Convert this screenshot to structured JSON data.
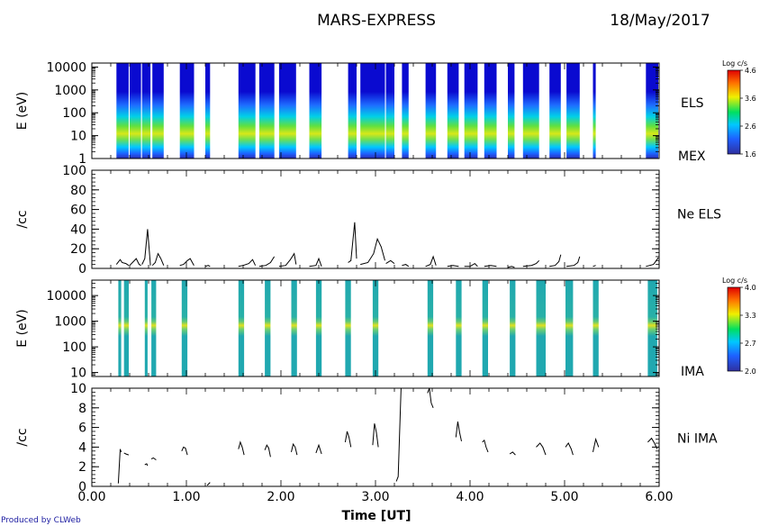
{
  "title": "MARS-EXPRESS",
  "date": "18/May/2017",
  "credit": "Produced by CLWeb",
  "chart_data": [
    {
      "type": "heatmap",
      "id": "els-spectrogram",
      "ylabel": "E (eV)",
      "right_label": "ELS",
      "extra_label": "MEX",
      "yscale": "log",
      "ylim": [
        1,
        15000
      ],
      "yticks": [
        "10000",
        "1000",
        "100",
        "10",
        "1"
      ],
      "colorbar": {
        "title": "Log c/s",
        "range": [
          1.6,
          4.6
        ],
        "ticks": [
          "4.6",
          "3.6",
          "2.6",
          "1.6"
        ]
      },
      "xlim": [
        0,
        6
      ],
      "data_intervals_ut": [
        [
          0.26,
          0.39
        ],
        [
          0.4,
          0.52
        ],
        [
          0.53,
          0.62
        ],
        [
          0.64,
          0.76
        ],
        [
          0.93,
          1.08
        ],
        [
          1.2,
          1.25
        ],
        [
          1.55,
          1.73
        ],
        [
          1.77,
          1.93
        ],
        [
          1.98,
          2.16
        ],
        [
          2.3,
          2.43
        ],
        [
          2.71,
          2.8
        ],
        [
          2.84,
          3.1
        ],
        [
          3.11,
          3.2
        ],
        [
          3.28,
          3.35
        ],
        [
          3.53,
          3.64
        ],
        [
          3.76,
          3.88
        ],
        [
          3.94,
          4.08
        ],
        [
          4.15,
          4.28
        ],
        [
          4.4,
          4.47
        ],
        [
          4.56,
          4.73
        ],
        [
          4.84,
          4.96
        ],
        [
          5.02,
          5.16
        ],
        [
          5.3,
          5.33
        ],
        [
          5.86,
          5.99
        ]
      ]
    },
    {
      "type": "line",
      "id": "ne-els",
      "ylabel": "/cc",
      "right_label": "Ne ELS",
      "ylim": [
        0,
        100
      ],
      "yticks": [
        0,
        20,
        40,
        60,
        80,
        100
      ],
      "xlim": [
        0,
        6
      ],
      "series": [
        {
          "segments": [
            {
              "x": [
                0.26,
                0.3,
                0.32,
                0.36,
                0.39
              ],
              "y": [
                4,
                9,
                6,
                5,
                3
              ]
            },
            {
              "x": [
                0.4,
                0.44,
                0.47,
                0.5,
                0.52
              ],
              "y": [
                3,
                7,
                10,
                4,
                3
              ]
            },
            {
              "x": [
                0.53,
                0.56,
                0.59,
                0.62
              ],
              "y": [
                4,
                10,
                40,
                3
              ]
            },
            {
              "x": [
                0.64,
                0.67,
                0.7,
                0.73,
                0.76
              ],
              "y": [
                3,
                6,
                15,
                10,
                3
              ]
            },
            {
              "x": [
                0.93,
                0.97,
                1.01,
                1.04,
                1.08
              ],
              "y": [
                3,
                4,
                8,
                10,
                3
              ]
            },
            {
              "x": [
                1.2,
                1.23,
                1.25
              ],
              "y": [
                2,
                3,
                2
              ]
            },
            {
              "x": [
                1.55,
                1.6,
                1.66,
                1.7,
                1.73
              ],
              "y": [
                2,
                3,
                5,
                9,
                3
              ]
            },
            {
              "x": [
                1.77,
                1.84,
                1.89,
                1.93
              ],
              "y": [
                2,
                3,
                6,
                12
              ]
            },
            {
              "x": [
                1.98,
                2.05,
                2.1,
                2.14,
                2.16
              ],
              "y": [
                2,
                3,
                9,
                15,
                4
              ]
            },
            {
              "x": [
                2.3,
                2.37,
                2.4,
                2.43
              ],
              "y": [
                2,
                3,
                10,
                2
              ]
            },
            {
              "x": [
                2.71,
                2.74,
                2.78,
                2.8
              ],
              "y": [
                6,
                8,
                47,
                10
              ]
            },
            {
              "x": [
                2.84,
                2.92,
                2.98,
                3.02,
                3.06,
                3.1
              ],
              "y": [
                4,
                6,
                15,
                30,
                22,
                8
              ]
            },
            {
              "x": [
                3.11,
                3.16,
                3.2
              ],
              "y": [
                5,
                8,
                5
              ]
            },
            {
              "x": [
                3.28,
                3.32,
                3.35
              ],
              "y": [
                3,
                4,
                2
              ]
            },
            {
              "x": [
                3.53,
                3.58,
                3.61,
                3.64
              ],
              "y": [
                2,
                4,
                12,
                3
              ]
            },
            {
              "x": [
                3.76,
                3.82,
                3.88
              ],
              "y": [
                2,
                3,
                2
              ]
            },
            {
              "x": [
                3.94,
                4.0,
                4.05,
                4.08
              ],
              "y": [
                2,
                2,
                5,
                2
              ]
            },
            {
              "x": [
                4.15,
                4.22,
                4.28
              ],
              "y": [
                2,
                3,
                2
              ]
            },
            {
              "x": [
                4.4,
                4.44,
                4.47
              ],
              "y": [
                1,
                2,
                1
              ]
            },
            {
              "x": [
                4.56,
                4.65,
                4.7,
                4.73
              ],
              "y": [
                2,
                3,
                5,
                8
              ]
            },
            {
              "x": [
                4.84,
                4.9,
                4.94,
                4.96
              ],
              "y": [
                2,
                3,
                7,
                14
              ]
            },
            {
              "x": [
                5.02,
                5.1,
                5.14,
                5.16
              ],
              "y": [
                2,
                3,
                6,
                12
              ]
            },
            {
              "x": [
                5.3,
                5.33
              ],
              "y": [
                2,
                3
              ]
            },
            {
              "x": [
                5.86,
                5.94,
                5.97,
                5.99
              ],
              "y": [
                2,
                4,
                8,
                11
              ]
            }
          ]
        }
      ]
    },
    {
      "type": "heatmap",
      "id": "ima-spectrogram",
      "ylabel": "E (eV)",
      "right_label": "IMA",
      "yscale": "log",
      "ylim": [
        7,
        40000
      ],
      "yticks": [
        "10000",
        "1000",
        "100",
        "10"
      ],
      "colorbar": {
        "title": "Log c/s",
        "range": [
          2.0,
          4.0
        ],
        "ticks": [
          "4.0",
          "3.3",
          "2.7",
          "2.0"
        ]
      },
      "xlim": [
        0,
        6
      ],
      "data_intervals_ut": [
        [
          0.28,
          0.31
        ],
        [
          0.34,
          0.39
        ],
        [
          0.56,
          0.59
        ],
        [
          0.63,
          0.68
        ],
        [
          0.95,
          1.01
        ],
        [
          1.55,
          1.61
        ],
        [
          1.83,
          1.89
        ],
        [
          2.11,
          2.17
        ],
        [
          2.37,
          2.43
        ],
        [
          2.68,
          2.74
        ],
        [
          2.97,
          3.03
        ],
        [
          3.55,
          3.61
        ],
        [
          3.85,
          3.91
        ],
        [
          4.13,
          4.19
        ],
        [
          4.42,
          4.48
        ],
        [
          4.7,
          4.8
        ],
        [
          5.01,
          5.09
        ],
        [
          5.3,
          5.36
        ],
        [
          5.88,
          5.98
        ]
      ]
    },
    {
      "type": "line",
      "id": "ni-ima",
      "ylabel": "/cc",
      "right_label": "Ni IMA",
      "xlabel": "Time [UT]",
      "ylim": [
        0,
        10
      ],
      "yticks": [
        0,
        2,
        4,
        6,
        8,
        10
      ],
      "xlim": [
        0,
        6
      ],
      "xticks": [
        "0.00",
        "1.00",
        "2.00",
        "3.00",
        "4.00",
        "5.00",
        "6.00"
      ],
      "series": [
        {
          "segments": [
            {
              "x": [
                0.28,
                0.3,
                0.31
              ],
              "y": [
                0.3,
                3.8,
                3.5
              ]
            },
            {
              "x": [
                0.34,
                0.36,
                0.39
              ],
              "y": [
                3.4,
                3.3,
                3.2
              ]
            },
            {
              "x": [
                0.56,
                0.58,
                0.59
              ],
              "y": [
                2.2,
                2.3,
                2.1
              ]
            },
            {
              "x": [
                0.63,
                0.65,
                0.68
              ],
              "y": [
                2.8,
                2.9,
                2.7
              ]
            },
            {
              "x": [
                0.95,
                0.97,
                0.99,
                1.01
              ],
              "y": [
                3.6,
                4.0,
                3.9,
                3.2
              ]
            },
            {
              "x": [
                1.22,
                1.25
              ],
              "y": [
                0.1,
                0.4
              ]
            },
            {
              "x": [
                1.55,
                1.57,
                1.59,
                1.61
              ],
              "y": [
                3.8,
                4.5,
                4.0,
                3.2
              ]
            },
            {
              "x": [
                1.83,
                1.85,
                1.87,
                1.89
              ],
              "y": [
                3.7,
                4.2,
                3.9,
                3.0
              ]
            },
            {
              "x": [
                2.11,
                2.13,
                2.15,
                2.17
              ],
              "y": [
                3.5,
                4.3,
                4.0,
                3.2
              ]
            },
            {
              "x": [
                2.37,
                2.4,
                2.43
              ],
              "y": [
                3.4,
                4.2,
                3.3
              ]
            },
            {
              "x": [
                2.68,
                2.7,
                2.72,
                2.74
              ],
              "y": [
                4.5,
                5.6,
                5.0,
                4.0
              ]
            },
            {
              "x": [
                2.97,
                2.99,
                3.01,
                3.03
              ],
              "y": [
                4.2,
                6.4,
                5.5,
                4.0
              ]
            },
            {
              "x": [
                3.22,
                3.24,
                3.27
              ],
              "y": [
                0.5,
                1.0,
                10
              ]
            },
            {
              "x": [
                3.55,
                3.57,
                3.59,
                3.61
              ],
              "y": [
                9.5,
                10,
                8.5,
                8.0
              ]
            },
            {
              "x": [
                3.85,
                3.87,
                3.89,
                3.91
              ],
              "y": [
                5.0,
                6.6,
                5.5,
                4.6
              ]
            },
            {
              "x": [
                4.13,
                4.15,
                4.17,
                4.19
              ],
              "y": [
                4.5,
                4.7,
                4.0,
                3.5
              ]
            },
            {
              "x": [
                4.42,
                4.45,
                4.48
              ],
              "y": [
                3.3,
                3.5,
                3.2
              ]
            },
            {
              "x": [
                4.7,
                4.74,
                4.77,
                4.8
              ],
              "y": [
                4.0,
                4.4,
                4.0,
                3.2
              ]
            },
            {
              "x": [
                5.01,
                5.04,
                5.07,
                5.09
              ],
              "y": [
                4.0,
                4.4,
                3.8,
                3.2
              ]
            },
            {
              "x": [
                5.3,
                5.33,
                5.36
              ],
              "y": [
                3.5,
                4.8,
                4.0
              ]
            },
            {
              "x": [
                5.88,
                5.92,
                5.95,
                5.98
              ],
              "y": [
                4.5,
                4.9,
                4.4,
                3.8
              ]
            }
          ]
        }
      ]
    }
  ]
}
